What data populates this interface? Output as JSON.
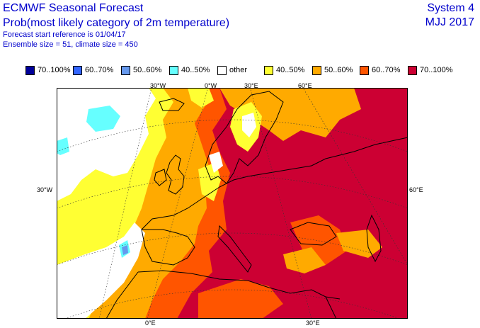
{
  "header": {
    "title": "ECMWF Seasonal Forecast",
    "subtitle": "Prob(most likely category of 2m temperature)",
    "start_reference": "Forecast start reference is 01/04/17",
    "ensemble": "Ensemble size = 51, climate size = 450",
    "system": "System 4",
    "period": "MJJ 2017"
  },
  "legend": [
    {
      "label": "70..100%",
      "color": "#000099"
    },
    {
      "label": "60..70%",
      "color": "#3366ff"
    },
    {
      "label": "50..60%",
      "color": "#6699ee"
    },
    {
      "label": "40..50%",
      "color": "#66ffff"
    },
    {
      "label": "other",
      "color": "#ffffff"
    },
    {
      "label": "40..50%",
      "color": "#ffff33"
    },
    {
      "label": "50..60%",
      "color": "#ffaa00"
    },
    {
      "label": "60..70%",
      "color": "#ff5500"
    },
    {
      "label": "70..100%",
      "color": "#cc0033"
    }
  ],
  "map": {
    "lon_labels_top": [
      "30°W",
      "0°W",
      "30°E",
      "60°E"
    ],
    "lon_labels_bottom": [
      "0°E",
      "30°E"
    ],
    "lat_label_left": "30°W",
    "lat_label_right": "60°E"
  }
}
